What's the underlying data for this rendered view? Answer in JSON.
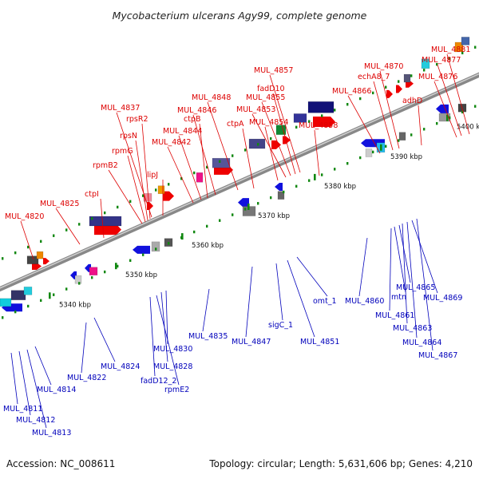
{
  "title": "Mycobacterium ulcerans Agy99, complete genome",
  "footer": {
    "accession": "Accession: NC_008611",
    "summary": "Topology: circular; Length: 5,631,606 bp; Genes: 4,210"
  },
  "colors": {
    "forward_label": "#dd0000",
    "reverse_label": "#0000bb",
    "backbone": "#999999",
    "tick": "#118811"
  },
  "axis": {
    "ticks": [
      "5340 kbp",
      "5350 kbp",
      "5360 kbp",
      "5370 kbp",
      "5380 kbp",
      "5390 kbp",
      "5400 kbp"
    ]
  },
  "forward_labels": [
    "MUL_4820",
    "MUL_4825",
    "ctpI",
    "rpmB2",
    "rpmG",
    "rpsN",
    "rpsR2",
    "MUL_4837",
    "lipJ",
    "MUL_4842",
    "MUL_4844",
    "ctpB",
    "MUL_4846",
    "MUL_4848",
    "ctpA",
    "MUL_4854",
    "MUL_4853",
    "MUL_4855",
    "fadD10",
    "MUL_4857",
    "MUL_4858",
    "MUL_4866",
    "echA8_7",
    "MUL_4870",
    "adhD",
    "MUL_4876",
    "MUL_4877",
    "MUL_4881"
  ],
  "reverse_labels": [
    "MUL_4811",
    "MUL_4812",
    "MUL_4813",
    "MUL_4814",
    "MUL_4822",
    "MUL_4824",
    "fadD12_2",
    "rpmE2",
    "MUL_4828",
    "MUL_4830",
    "MUL_4835",
    "MUL_4847",
    "sigC_1",
    "MUL_4851",
    "omt_1",
    "MUL_4860",
    "MUL_4861",
    "mtn",
    "MUL_4865",
    "MUL_4863",
    "MUL_4864",
    "MUL_4869",
    "MUL_4867"
  ]
}
